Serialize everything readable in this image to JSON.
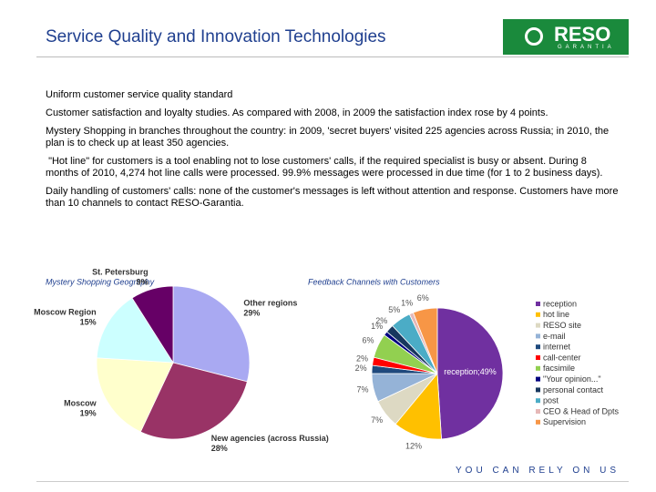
{
  "header": {
    "title": "Service Quality and Innovation Technologies",
    "logo": {
      "name": "RESO",
      "tagline": "GARANTIA"
    }
  },
  "paragraphs": [
    "Uniform customer service quality standard",
    "Customer satisfaction and loyalty studies. As compared with 2008, in 2009 the satisfaction index rose by 4 points.",
    "Mystery Shopping in branches throughout the country: in 2009, 'secret buyers' visited 225 agencies across Russia; in 2010, the plan is to check up at least 350 agencies.",
    " \"Hot line\" for customers is a tool enabling not to lose customers' calls, if the required specialist is busy or absent. During 8 months of 2010, 4,274 hot line calls were processed. 99.9% messages were processed in due time (for 1 to 2 business days).",
    "Daily handling of customers' calls: none of the customer's messages is left without attention and response. Customers have more than 10 channels to contact RESO-Garantia."
  ],
  "footer": "YOU CAN RELY ON US",
  "chart_data": [
    {
      "type": "pie",
      "title": "Mystery Shopping Geography",
      "categories": [
        "Other regions",
        "New agencies (across Russia)",
        "Moscow",
        "Moscow Region",
        "St. Petersburg"
      ],
      "values": [
        29,
        28,
        19,
        15,
        9
      ],
      "value_labels": [
        "29%",
        "28%",
        "19%",
        "15%",
        "9%"
      ],
      "colors": [
        "#a9a9f2",
        "#993366",
        "#ffffcc",
        "#ccffff",
        "#660066"
      ]
    },
    {
      "type": "pie",
      "title": "Feedback Channels with Customers",
      "categories": [
        "reception",
        "hot line",
        "RESO site",
        "e-mail",
        "internet",
        "call-center",
        "facsimile",
        "\"Your opinion...\"",
        "personal contact",
        "post",
        "CEO & Head of Dpts",
        "Supervision"
      ],
      "values": [
        49,
        12,
        7,
        7,
        2,
        2,
        6,
        1,
        2,
        5,
        1,
        6
      ],
      "value_labels": [
        "reception;49%",
        "12%",
        "7%",
        "7%",
        "2%",
        "2%",
        "6%",
        "1%",
        "2%",
        "5%",
        "1%",
        "6%"
      ],
      "colors": [
        "#7030a0",
        "#ffc000",
        "#ddd9c3",
        "#95b3d7",
        "#1f497d",
        "#ff0000",
        "#92d050",
        "#000080",
        "#17375e",
        "#4bacc6",
        "#e6b8b7",
        "#f79646"
      ],
      "legend": "right"
    }
  ]
}
